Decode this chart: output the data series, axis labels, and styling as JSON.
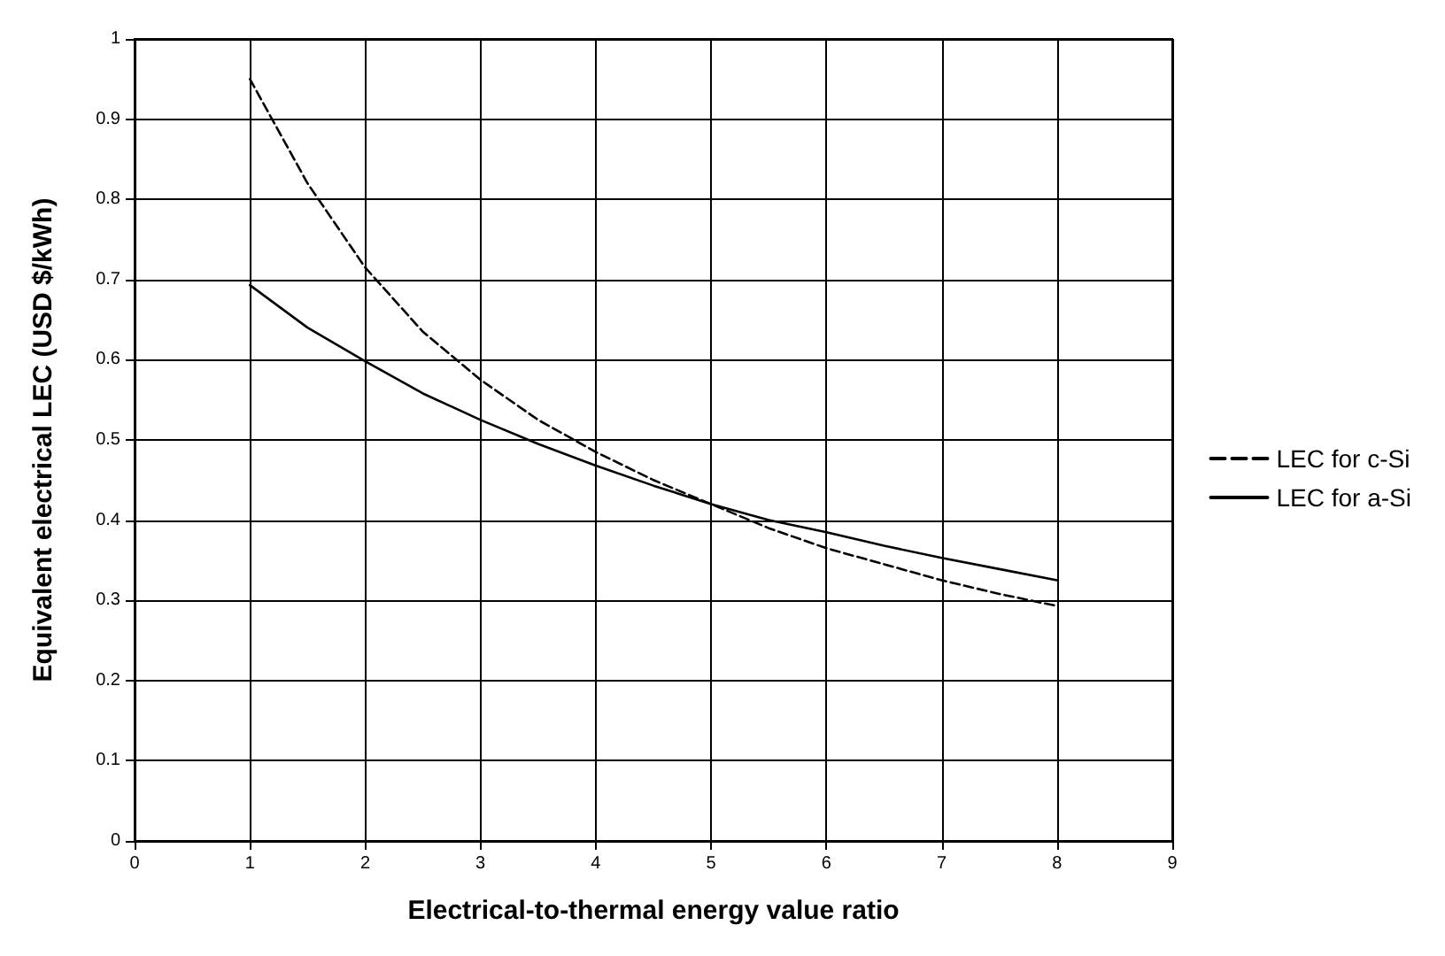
{
  "chart_data": {
    "type": "line",
    "xlabel": "Electrical-to-thermal energy value ratio",
    "ylabel": "Equivalent electrical LEC (USD $/kWh)",
    "x": [
      1,
      1.5,
      2,
      2.5,
      3,
      3.5,
      4,
      4.5,
      5,
      5.5,
      6,
      6.5,
      7,
      7.5,
      8
    ],
    "series": [
      {
        "name": "LEC for c-Si",
        "color": "#000000",
        "line_style": "dashed",
        "values": [
          0.95,
          0.82,
          0.715,
          0.635,
          0.575,
          0.525,
          0.485,
          0.45,
          0.42,
          0.39,
          0.365,
          0.345,
          0.325,
          0.308,
          0.293
        ]
      },
      {
        "name": "LEC for a-Si",
        "color": "#000000",
        "line_style": "solid",
        "values": [
          0.693,
          0.64,
          0.598,
          0.558,
          0.525,
          0.495,
          0.468,
          0.443,
          0.42,
          0.4,
          0.385,
          0.368,
          0.353,
          0.339,
          0.325
        ]
      }
    ],
    "xlim": [
      0,
      9
    ],
    "xticks": [
      0,
      1,
      2,
      3,
      4,
      5,
      6,
      7,
      8,
      9
    ],
    "ylim": [
      0,
      1
    ],
    "yticks": [
      0,
      0.1,
      0.2,
      0.3,
      0.4,
      0.5,
      0.6,
      0.7,
      0.8,
      0.9,
      1
    ],
    "grid": true,
    "legend": "right",
    "marker": "none"
  }
}
